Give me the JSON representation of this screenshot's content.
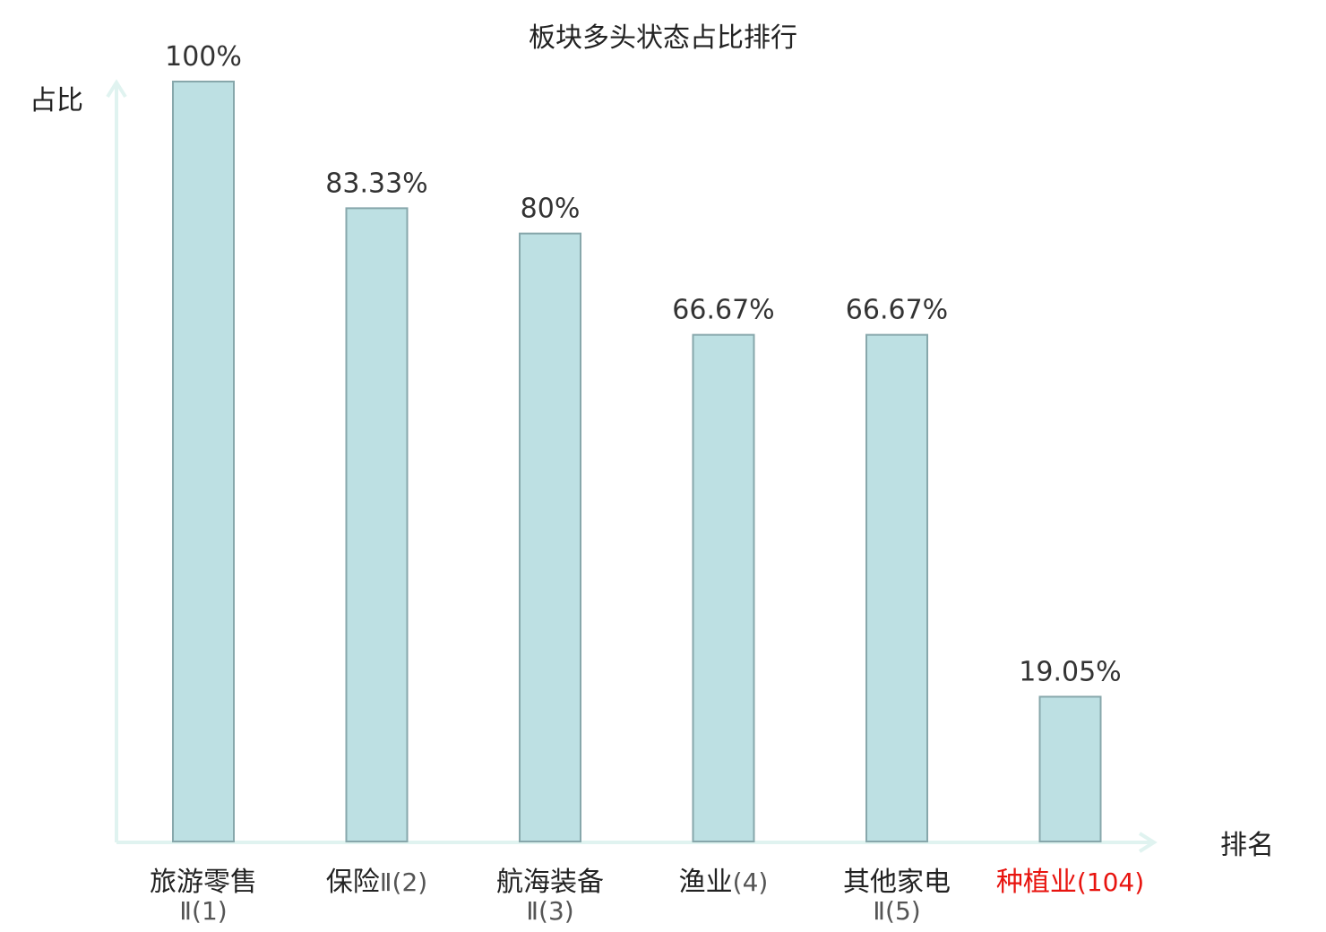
{
  "chart_data": {
    "type": "bar",
    "title": "板块多头状态占比排行",
    "xlabel": "排名",
    "ylabel": "占比",
    "ylim": [
      0,
      100
    ],
    "grid": false,
    "categories": [
      {
        "name": "旅游零售",
        "rank_label": "Ⅱ(1)",
        "highlight": false
      },
      {
        "name": "保险",
        "rank_label": "Ⅱ(2)",
        "highlight": false
      },
      {
        "name": "航海装备",
        "rank_label": "Ⅱ(3)",
        "highlight": false
      },
      {
        "name": "渔业",
        "rank_label": "(4)",
        "highlight": false
      },
      {
        "name": "其他家电",
        "rank_label": "Ⅱ(5)",
        "highlight": false
      },
      {
        "name": "种植业",
        "rank_label": "(104)",
        "highlight": true
      }
    ],
    "values": [
      100,
      83.33,
      80,
      66.67,
      66.67,
      19.05
    ],
    "value_labels": [
      "100%",
      "83.33%",
      "80%",
      "66.67%",
      "66.67%",
      "19.05%"
    ]
  },
  "colors": {
    "bar_fill": "#bde0e3",
    "bar_stroke": "#87a7ab",
    "axis": "#e0f3f0",
    "highlight_text": "#e8140f",
    "text": "#222222"
  }
}
